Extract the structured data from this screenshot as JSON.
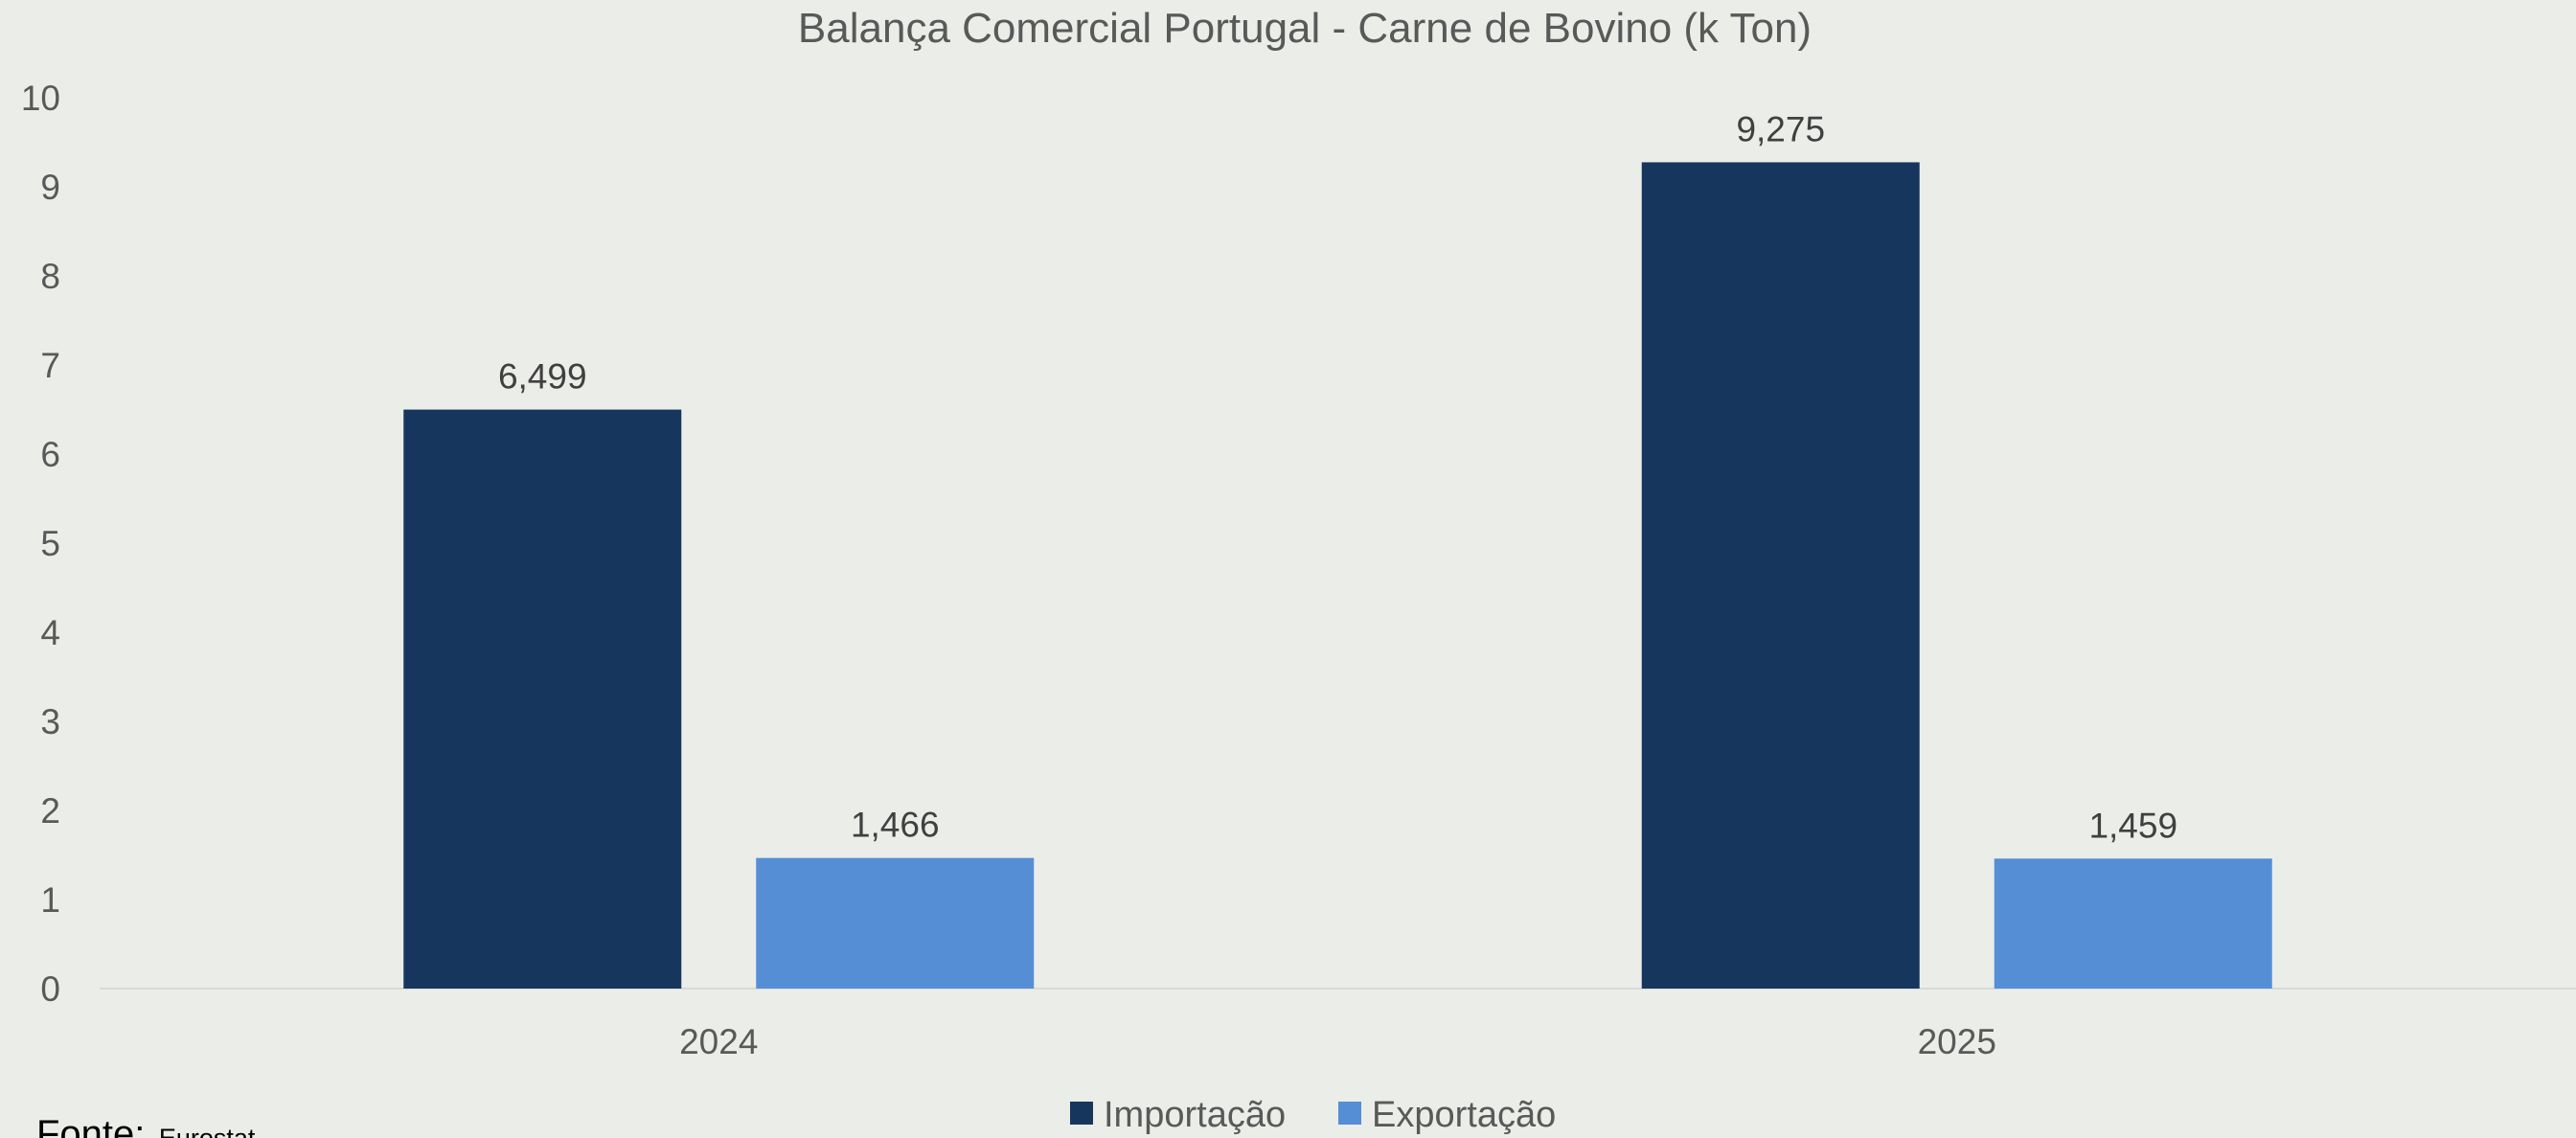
{
  "chart_data": {
    "type": "bar",
    "title": "Balança Comercial Portugal - Carne de Bovino (k Ton)",
    "xlabel": "",
    "ylabel": "",
    "categories": [
      "2024",
      "2025"
    ],
    "series": [
      {
        "name": "Importação",
        "values": [
          6.499,
          9.275
        ],
        "labels": [
          "6,499",
          "9,275"
        ],
        "color": "#17365d"
      },
      {
        "name": "Exportação",
        "values": [
          1.466,
          1.459
        ],
        "labels": [
          "1,466",
          "1,459"
        ],
        "color": "#558ed5"
      }
    ],
    "ylim": [
      0,
      10
    ],
    "yticks": [
      "0",
      "1",
      "2",
      "3",
      "4",
      "5",
      "6",
      "7",
      "8",
      "9",
      "10"
    ],
    "grid": false,
    "legend_position": "bottom"
  },
  "source": {
    "prefix": "Fonte:",
    "name": "Eurostat"
  },
  "colors": {
    "background": "#ebede9",
    "axis_line": "#d9d9d9"
  }
}
